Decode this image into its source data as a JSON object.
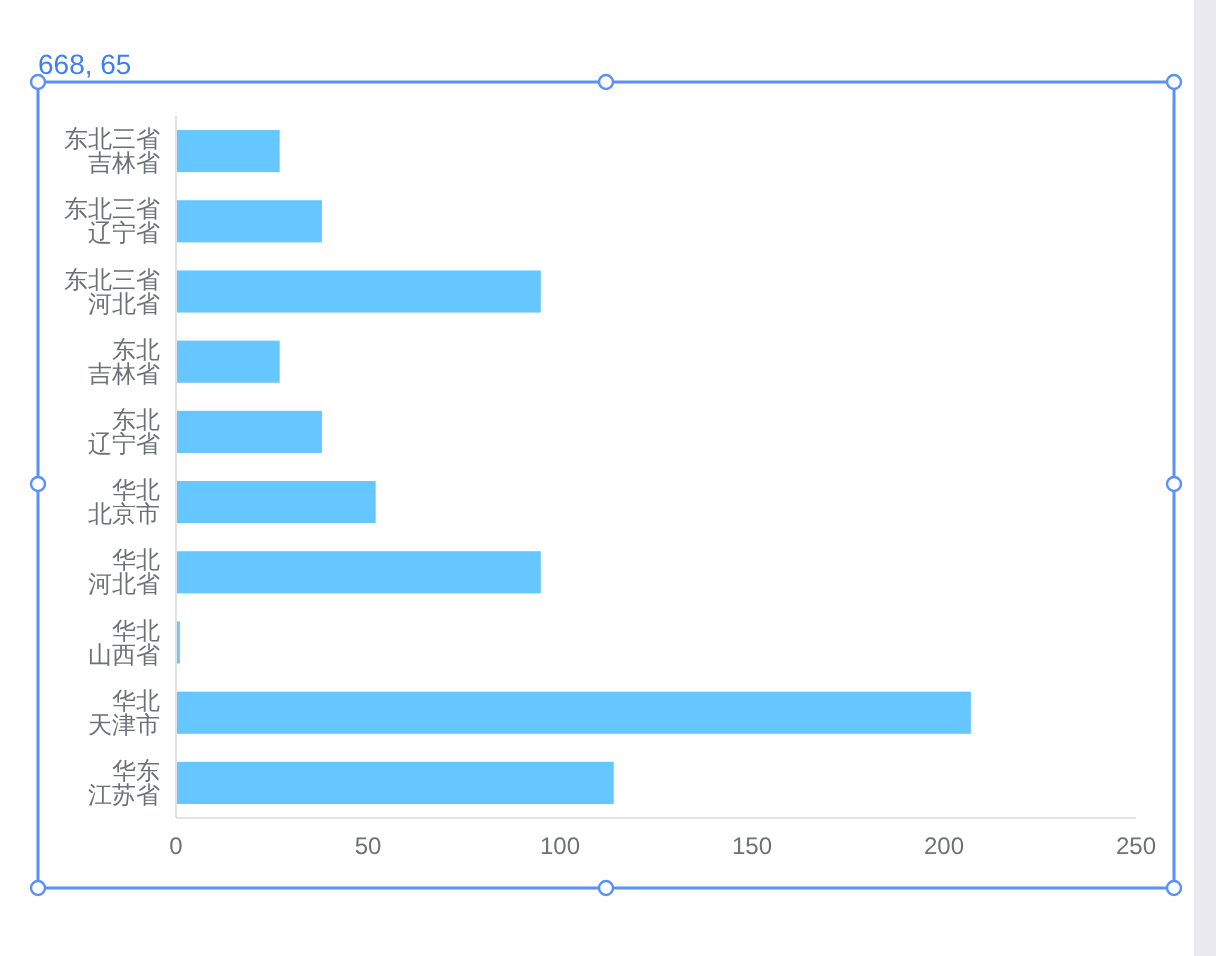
{
  "chart_data": {
    "type": "bar",
    "orientation": "horizontal",
    "categories": [
      "东北三省吉林省",
      "东北三省辽宁省",
      "东北三省河北省",
      "东北吉林省",
      "东北辽宁省",
      "华北北京市",
      "华北河北省",
      "华北山西省",
      "华北天津市",
      "华东江苏省"
    ],
    "values": [
      27,
      38,
      95,
      27,
      38,
      52,
      95,
      1,
      207,
      114
    ],
    "color": "#66c6ff",
    "xlim": [
      0,
      250
    ],
    "xticks": [
      0,
      50,
      100,
      150,
      200,
      250
    ],
    "grid": false,
    "annotations": [
      "668, 65"
    ]
  }
}
